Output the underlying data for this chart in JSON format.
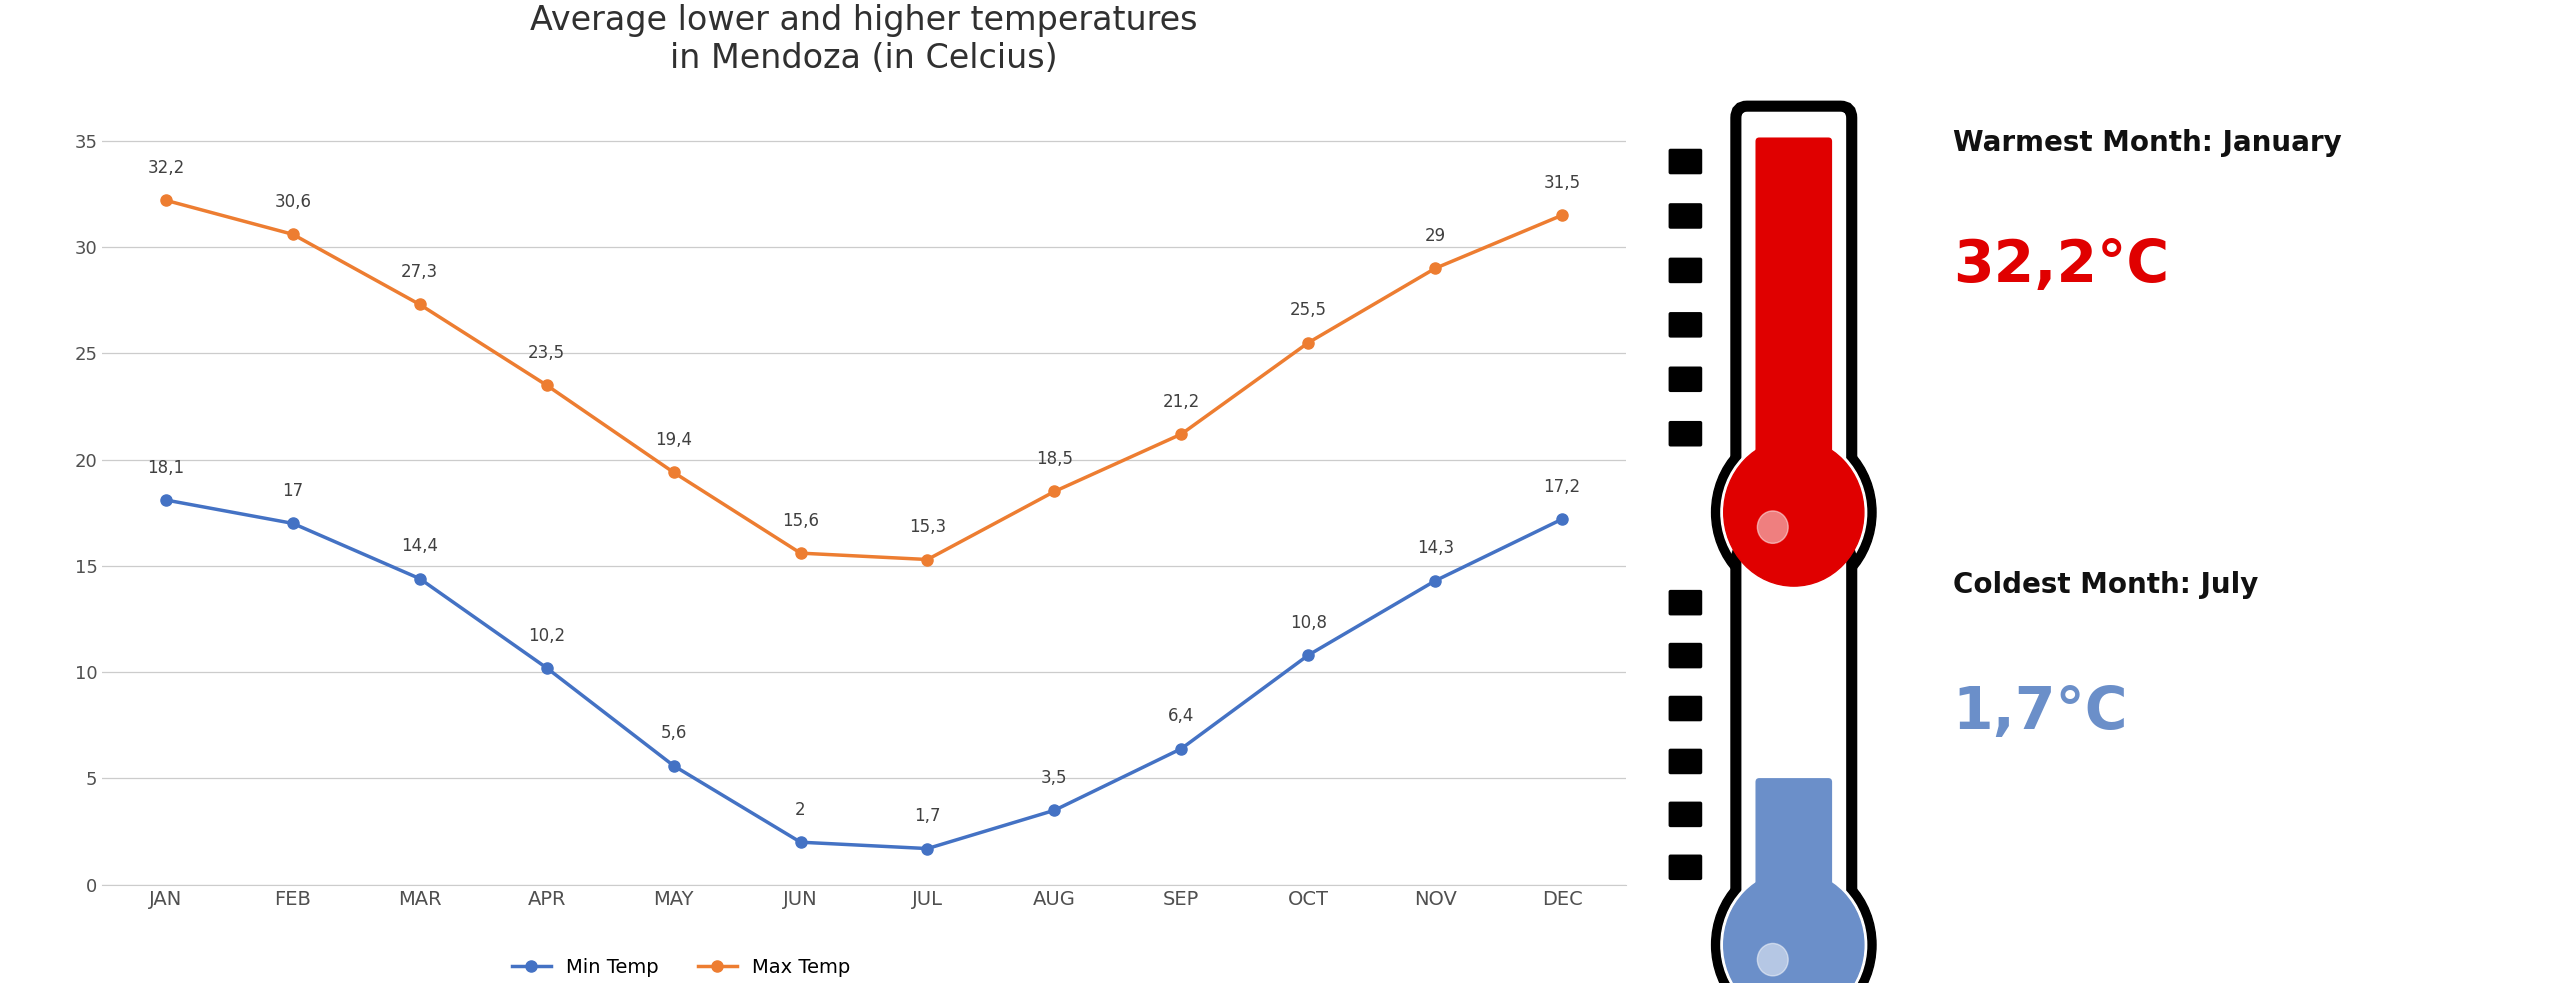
{
  "months": [
    "JAN",
    "FEB",
    "MAR",
    "APR",
    "MAY",
    "JUN",
    "JUL",
    "AUG",
    "SEP",
    "OCT",
    "NOV",
    "DEC"
  ],
  "min_temp": [
    18.1,
    17.0,
    14.4,
    10.2,
    5.6,
    2.0,
    1.7,
    3.5,
    6.4,
    10.8,
    14.3,
    17.2
  ],
  "max_temp": [
    32.2,
    30.6,
    27.3,
    23.5,
    19.4,
    15.6,
    15.3,
    18.5,
    21.2,
    25.5,
    29.0,
    31.5
  ],
  "min_labels": [
    "18,1",
    "17",
    "14,4",
    "10,2",
    "5,6",
    "2",
    "1,7",
    "3,5",
    "6,4",
    "10,8",
    "14,3",
    "17,2"
  ],
  "max_labels": [
    "32,2",
    "30,6",
    "27,3",
    "23,5",
    "19,4",
    "15,6",
    "15,3",
    "18,5",
    "21,2",
    "25,5",
    "29",
    "31,5"
  ],
  "title_line1": "Average lower and higher temperatures",
  "title_line2": "in Mendoza (in Celcius)",
  "min_color": "#4472C4",
  "max_color": "#ED7D31",
  "ylim": [
    0,
    37
  ],
  "yticks": [
    0,
    5,
    10,
    15,
    20,
    25,
    30,
    35
  ],
  "background_color": "#ffffff",
  "warmest_month": "January",
  "warmest_temp": "32,2°C",
  "coldest_month": "July",
  "coldest_temp": "1,7°C",
  "warm_color": "#E00000",
  "cold_color": "#6B8FC9",
  "legend_min": "Min Temp",
  "legend_max": "Max Temp"
}
